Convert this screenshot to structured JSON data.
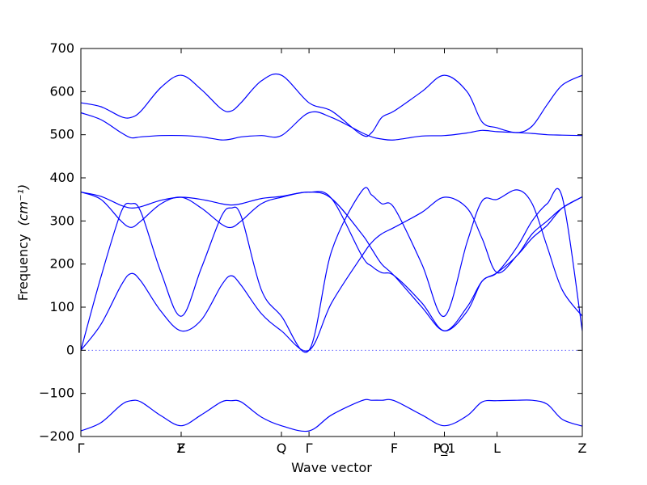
{
  "chart_data": {
    "type": "line",
    "title": "",
    "xlabel": "Wave vector",
    "ylabel": "Frequency",
    "ylabel_unit": "(cm⁻¹)",
    "ylim": [
      -200,
      700
    ],
    "yticks": [
      -200,
      -100,
      0,
      100,
      200,
      300,
      400,
      500,
      600,
      700
    ],
    "grid": false,
    "zero_line": true,
    "colors": {
      "bands": "#0000ff",
      "zero_line": "#5a5aff",
      "frame": "#000000"
    },
    "high_symmetry_points": [
      {
        "label": "Γ",
        "x": 0.0
      },
      {
        "label": "F",
        "x": 0.2
      },
      {
        "label": "Z",
        "x": 0.2
      },
      {
        "label": "Q",
        "x": 0.4
      },
      {
        "label": "Γ",
        "x": 0.455
      },
      {
        "label": "F",
        "x": 0.625
      },
      {
        "label": "P_1",
        "x": 0.725
      },
      {
        "label": "Q",
        "x": 0.725
      },
      {
        "label": "L",
        "x": 0.83
      },
      {
        "label": "Z",
        "x": 1.0
      }
    ],
    "x": [
      0,
      0.04,
      0.08,
      0.1,
      0.12,
      0.16,
      0.2,
      0.24,
      0.28,
      0.3,
      0.32,
      0.36,
      0.4,
      0.455,
      0.5,
      0.56,
      0.58,
      0.6,
      0.625,
      0.68,
      0.725,
      0.77,
      0.8,
      0.83,
      0.87,
      0.9,
      0.93,
      0.96,
      1.0
    ],
    "series": [
      {
        "values": [
          -187,
          -168,
          -127,
          -117,
          -120,
          -152,
          -175,
          -150,
          -120,
          -117,
          -120,
          -155,
          -175,
          -187,
          -150,
          -117,
          -116,
          -116,
          -117,
          -150,
          -175,
          -152,
          -120,
          -117,
          -116,
          -116,
          -125,
          -160,
          -176
        ]
      },
      {
        "values": [
          0,
          60,
          150,
          178,
          160,
          90,
          45,
          70,
          150,
          173,
          150,
          85,
          45,
          0,
          110,
          218,
          250,
          270,
          285,
          320,
          355,
          330,
          260,
          180,
          220,
          260,
          290,
          330,
          356
        ]
      },
      {
        "values": [
          0,
          170,
          320,
          340,
          320,
          180,
          79,
          190,
          310,
          330,
          310,
          140,
          79,
          0,
          230,
          369,
          360,
          340,
          330,
          200,
          79,
          250,
          346,
          350,
          372,
          340,
          240,
          140,
          79
        ]
      },
      {
        "values": [
          367,
          350,
          300,
          285,
          300,
          340,
          355,
          330,
          293,
          285,
          300,
          340,
          355,
          367,
          352,
          270,
          235,
          200,
          173,
          100,
          45,
          90,
          160,
          180,
          240,
          300,
          340,
          355,
          45
        ]
      },
      {
        "values": [
          367,
          357,
          336,
          330,
          333,
          348,
          355,
          350,
          340,
          337,
          340,
          352,
          357,
          367,
          352,
          220,
          195,
          180,
          173,
          110,
          45,
          100,
          160,
          180,
          220,
          270,
          300,
          330,
          356
        ]
      },
      {
        "values": [
          551,
          535,
          505,
          493,
          495,
          498,
          498,
          495,
          488,
          490,
          495,
          498,
          498,
          551,
          540,
          505,
          495,
          490,
          488,
          497,
          498,
          504,
          510,
          507,
          505,
          503,
          500,
          499,
          498
        ]
      },
      {
        "values": [
          574,
          565,
          542,
          540,
          555,
          610,
          638,
          605,
          560,
          555,
          575,
          625,
          638,
          574,
          555,
          500,
          505,
          540,
          555,
          600,
          638,
          600,
          530,
          516,
          505,
          520,
          570,
          615,
          638
        ]
      }
    ]
  }
}
